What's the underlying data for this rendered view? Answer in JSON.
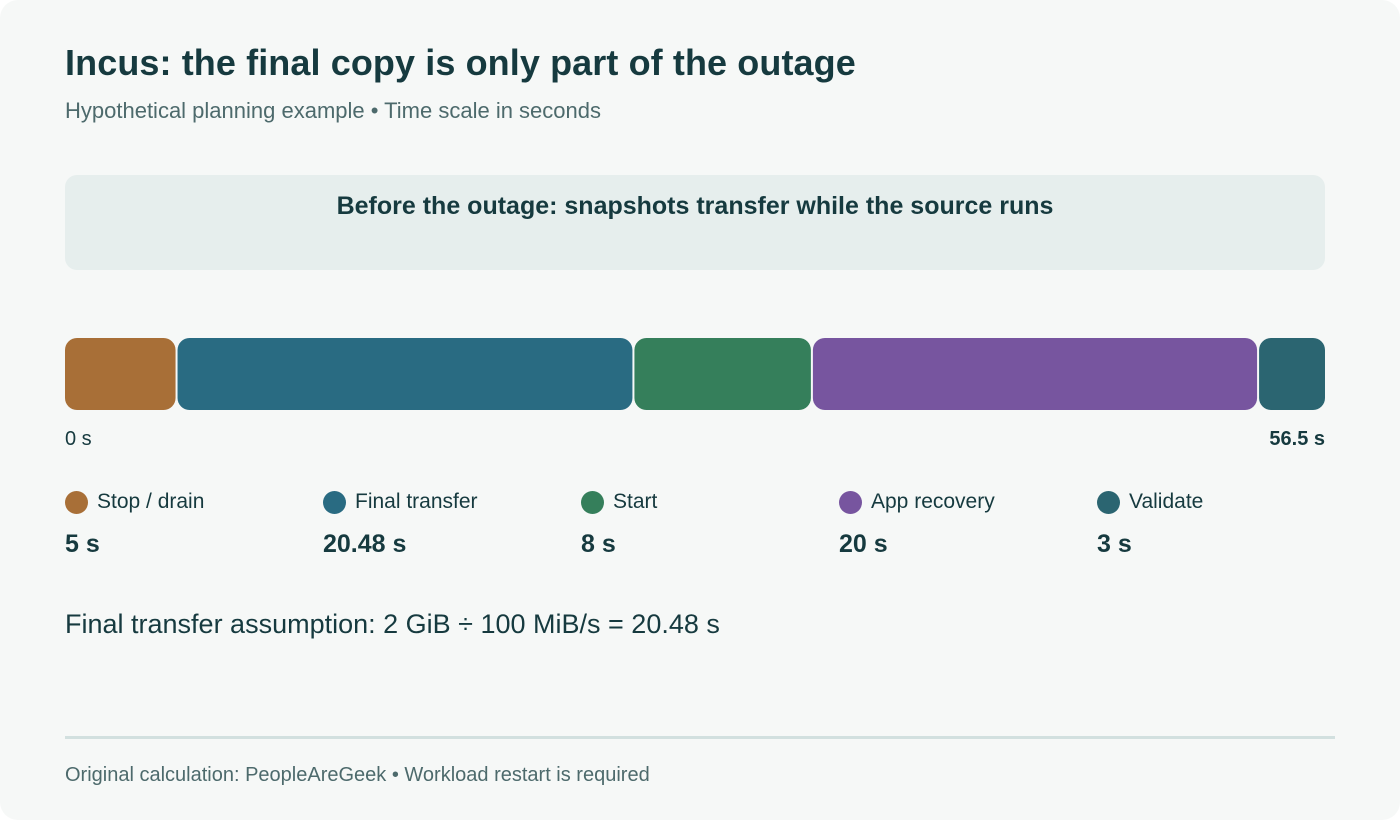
{
  "header": {
    "title": "Incus: the final copy is only part of the outage",
    "subtitle": "Hypothetical planning example • Time scale in seconds"
  },
  "banner": {
    "text": "Before the outage: snapshots transfer while the source runs"
  },
  "chart_data": {
    "type": "bar",
    "orientation": "horizontal-stacked",
    "xlim": [
      0,
      56.48
    ],
    "axis": {
      "start_label": "0 s",
      "end_label": "56.5 s"
    },
    "unit": "s",
    "legend_placement": "bottom",
    "segments": [
      {
        "name": "Stop / drain",
        "value": 5,
        "value_label": "5 s",
        "color": "#a86f37"
      },
      {
        "name": "Final transfer",
        "value": 20.48,
        "value_label": "20.48 s",
        "color": "#296b82"
      },
      {
        "name": "Start",
        "value": 8,
        "value_label": "8 s",
        "color": "#357f5b"
      },
      {
        "name": "App recovery",
        "value": 20,
        "value_label": "20 s",
        "color": "#77559f"
      },
      {
        "name": "Validate",
        "value": 3,
        "value_label": "3 s",
        "color": "#2b6571"
      }
    ]
  },
  "assumption": {
    "text": "Final transfer assumption: 2 GiB ÷ 100 MiB/s = 20.48 s"
  },
  "footer": {
    "text": "Original calculation: PeopleAreGeek • Workload restart is required"
  }
}
